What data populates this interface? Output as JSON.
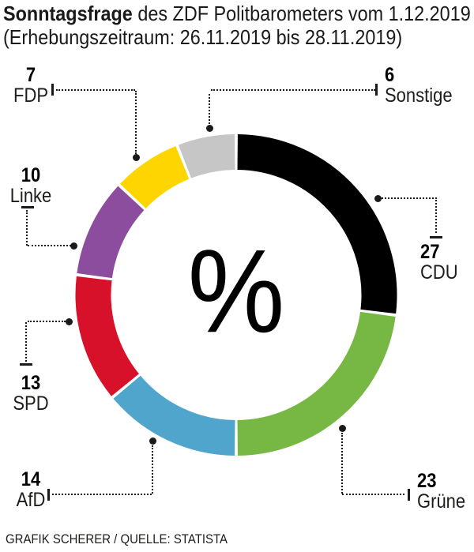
{
  "title": {
    "bold": "Sonntagsfrage",
    "rest": " des ZDF Politbarometers vom 1.12.2019",
    "line2": "(Erhebungszeitraum: 26.11.2019 bis 28.11.2019)"
  },
  "center_symbol": "%",
  "footer": "GRAFIK SCHERER / QUELLE: STATISTA",
  "colors": {
    "cdu": "#000000",
    "gruene": "#76B843",
    "afd": "#4FA5CC",
    "spd": "#D8112A",
    "linke": "#8C4D9E",
    "fdp": "#FFD500",
    "sonstige": "#C6C6C6",
    "leader": "#1a1a1a"
  },
  "chart_data": {
    "type": "pie",
    "subtype": "donut",
    "unit": "percent",
    "title": "Sonntagsfrage des ZDF Politbarometers vom 1.12.2019",
    "start_angle_deg": 0,
    "direction": "clockwise",
    "center_label": "%",
    "segments": [
      {
        "label": "CDU",
        "value": 27,
        "color": "#000000"
      },
      {
        "label": "Grüne",
        "value": 23,
        "color": "#76B843"
      },
      {
        "label": "AfD",
        "value": 14,
        "color": "#4FA5CC"
      },
      {
        "label": "SPD",
        "value": 13,
        "color": "#D8112A"
      },
      {
        "label": "Linke",
        "value": 10,
        "color": "#8C4D9E"
      },
      {
        "label": "FDP",
        "value": 7,
        "color": "#FFD500"
      },
      {
        "label": "Sonstige",
        "value": 6,
        "color": "#C6C6C6"
      }
    ]
  }
}
